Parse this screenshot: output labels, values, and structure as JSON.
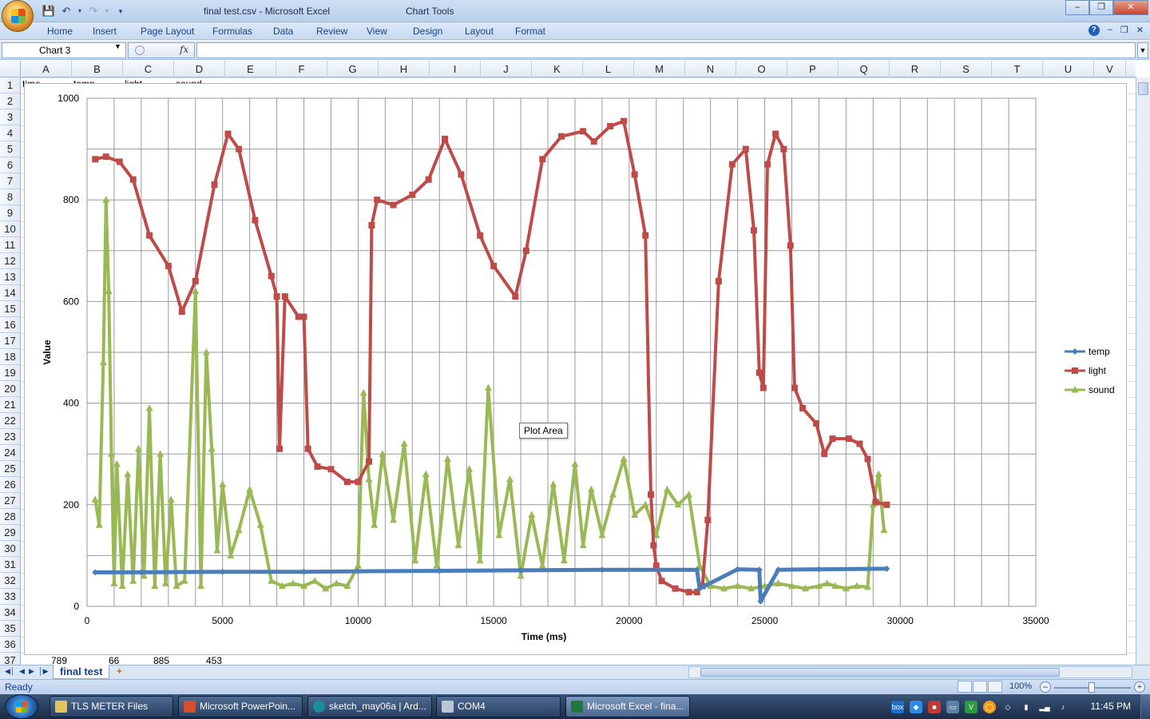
{
  "window": {
    "title": "final test.csv - Microsoft Excel",
    "context_title": "Chart Tools"
  },
  "ribbon": {
    "tabs": [
      "Home",
      "Insert",
      "Page Layout",
      "Formulas",
      "Data",
      "Review",
      "View",
      "Design",
      "Layout",
      "Format"
    ]
  },
  "formula_bar": {
    "name_box": "Chart 3",
    "fx_label": "fx",
    "formula": ""
  },
  "grid": {
    "columns": [
      "A",
      "B",
      "C",
      "D",
      "E",
      "F",
      "G",
      "H",
      "I",
      "J",
      "K",
      "L",
      "M",
      "N",
      "O",
      "P",
      "Q",
      "R",
      "S",
      "T",
      "U",
      "V"
    ],
    "rows": [
      "1",
      "2",
      "3",
      "4",
      "5",
      "6",
      "7",
      "8",
      "9",
      "10",
      "11",
      "12",
      "13",
      "14",
      "15",
      "16",
      "17",
      "18",
      "19",
      "20",
      "21",
      "22",
      "23",
      "24",
      "25",
      "26",
      "27",
      "28",
      "29",
      "30",
      "31",
      "32",
      "33",
      "34",
      "35",
      "36",
      "37"
    ],
    "row1": [
      "time",
      "temp",
      "light",
      "sound"
    ],
    "row37": [
      "789",
      "66",
      "885",
      "453"
    ]
  },
  "chart_data": {
    "type": "line",
    "title": "",
    "xlabel": "Time (ms)",
    "ylabel": "Value",
    "xlim": [
      0,
      35000
    ],
    "ylim": [
      0,
      1000
    ],
    "xticks": [
      0,
      5000,
      10000,
      15000,
      20000,
      25000,
      30000,
      35000
    ],
    "yticks": [
      0,
      200,
      400,
      600,
      800,
      1000
    ],
    "grid": true,
    "legend": "right",
    "series": [
      {
        "name": "temp",
        "color": "#4a7ebb",
        "marker": "diamond",
        "x": [
          300,
          2000,
          5000,
          8000,
          10000,
          13000,
          16000,
          19000,
          22500,
          22600,
          24000,
          24800,
          24850,
          25500,
          27000,
          29500
        ],
        "y": [
          67,
          67,
          68,
          68,
          69,
          70,
          71,
          72,
          72,
          35,
          73,
          72,
          10,
          72,
          73,
          74
        ]
      },
      {
        "name": "light",
        "color": "#be4b48",
        "marker": "square",
        "x": [
          300,
          700,
          1200,
          1700,
          2300,
          3000,
          3500,
          4000,
          4700,
          5200,
          5600,
          6200,
          6800,
          7000,
          7100,
          7300,
          7800,
          8000,
          8150,
          8500,
          9000,
          9600,
          10000,
          10400,
          10500,
          10700,
          11300,
          12000,
          12600,
          13200,
          13800,
          14500,
          15000,
          15800,
          16200,
          16800,
          17500,
          18300,
          18700,
          19300,
          19800,
          20200,
          20600,
          20800,
          20900,
          21000,
          21200,
          21700,
          22200,
          22500,
          22700,
          22900,
          23300,
          23800,
          24300,
          24600,
          24800,
          24950,
          25100,
          25400,
          25700,
          25950,
          26100,
          26400,
          26900,
          27200,
          27500,
          28100,
          28500,
          28800,
          29100,
          29500
        ],
        "y": [
          880,
          885,
          875,
          840,
          730,
          670,
          580,
          640,
          830,
          930,
          900,
          760,
          650,
          610,
          310,
          610,
          570,
          570,
          310,
          275,
          270,
          245,
          245,
          285,
          750,
          800,
          790,
          810,
          840,
          920,
          850,
          730,
          670,
          610,
          700,
          880,
          925,
          935,
          915,
          945,
          955,
          850,
          730,
          220,
          120,
          80,
          50,
          35,
          28,
          28,
          40,
          170,
          640,
          870,
          900,
          740,
          460,
          430,
          870,
          930,
          900,
          710,
          430,
          390,
          360,
          300,
          330,
          330,
          320,
          290,
          205,
          200
        ]
      },
      {
        "name": "sound",
        "color": "#98b954",
        "marker": "triangle",
        "x": [
          300,
          450,
          600,
          700,
          800,
          900,
          1000,
          1100,
          1300,
          1500,
          1700,
          1900,
          2100,
          2300,
          2500,
          2700,
          2900,
          3100,
          3300,
          3600,
          4000,
          4200,
          4400,
          4600,
          4800,
          5000,
          5300,
          5600,
          6000,
          6400,
          6800,
          7200,
          7600,
          8000,
          8400,
          8800,
          9200,
          9600,
          10000,
          10200,
          10400,
          10600,
          10900,
          11300,
          11700,
          12100,
          12500,
          12900,
          13300,
          13700,
          14100,
          14500,
          14800,
          15200,
          15600,
          16000,
          16400,
          16800,
          17200,
          17600,
          18000,
          18300,
          18600,
          19000,
          19400,
          19800,
          20200,
          20600,
          21000,
          21400,
          21800,
          22200,
          22600,
          23000,
          23500,
          24000,
          24500,
          25000,
          25500,
          26000,
          26500,
          27000,
          27300,
          27600,
          28000,
          28400,
          28800,
          29000,
          29200,
          29400
        ],
        "y": [
          210,
          160,
          480,
          800,
          620,
          300,
          45,
          280,
          40,
          260,
          50,
          310,
          60,
          390,
          40,
          300,
          45,
          210,
          40,
          50,
          620,
          40,
          500,
          310,
          110,
          240,
          100,
          150,
          230,
          160,
          50,
          40,
          45,
          40,
          50,
          35,
          45,
          40,
          80,
          420,
          250,
          160,
          300,
          170,
          320,
          90,
          260,
          80,
          290,
          120,
          270,
          90,
          430,
          140,
          250,
          60,
          180,
          80,
          240,
          90,
          280,
          120,
          230,
          140,
          220,
          290,
          180,
          200,
          140,
          230,
          200,
          220,
          80,
          40,
          35,
          40,
          35,
          40,
          45,
          40,
          35,
          40,
          45,
          40,
          35,
          40,
          38,
          200,
          260,
          150
        ]
      }
    ]
  },
  "tooltip": "Plot Area",
  "sheet": {
    "tab": "final test"
  },
  "status": {
    "text": "Ready",
    "zoom": "100%"
  },
  "taskbar": {
    "tasks": [
      "TLS METER Files",
      "Microsoft PowerPoin...",
      "sketch_may06a | Ard...",
      "COM4",
      "Microsoft Excel - fina..."
    ],
    "clock": "11:45 PM"
  }
}
